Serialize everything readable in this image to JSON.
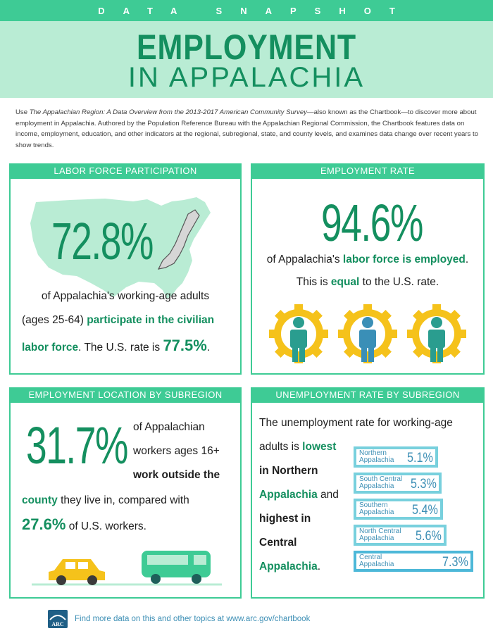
{
  "header": {
    "kicker": "DATA SNAPSHOT",
    "title_line1": "EMPLOYMENT",
    "title_line2": "IN APPALACHIA"
  },
  "intro": {
    "prefix": "Use ",
    "italic": "The Appalachian Region: A Data Overview from the 2013-2017 American Community Survey",
    "rest": "—also known as the Chartbook—to discover more about employment in Appalachia. Authored by the Population Reference Bureau with the Appalachian Regional Commission, the Chartbook features data on income, employment, education, and other indicators at the regional, subregional, state, and county levels, and examines data change over recent years to show trends."
  },
  "labor": {
    "heading": "LABOR FORCE PARTICIPATION",
    "value": "72.8%",
    "line1": "of Appalachia's working-age adults",
    "line2_prefix": "(ages 25-64) ",
    "line2_green": "participate in the civilian",
    "line3_green": "labor force",
    "line3_mid": ". The U.S. rate is ",
    "us_rate": "77.5%",
    "line3_end": "."
  },
  "employment": {
    "heading": "EMPLOYMENT RATE",
    "value": "94.6%",
    "line1_prefix": "of Appalachia's ",
    "line1_green": "labor force is employed",
    "line1_end": ".",
    "line2_prefix": "This is ",
    "line2_green": "equal",
    "line2_end": " to the U.S. rate."
  },
  "location": {
    "heading": "EMPLOYMENT LOCATION BY SUBREGION",
    "value": "31.7%",
    "line1": "of Appalachian",
    "line2": "workers ages 16+",
    "line3_green": "work outside the",
    "line4_green": "county",
    "line4_rest": " they live in, compared with",
    "us_value": "27.6%",
    "line5_rest": " of U.S. workers."
  },
  "unemployment": {
    "heading": "UNEMPLOYMENT RATE BY SUBREGION",
    "line1": "The unemployment rate for working-age",
    "line2_prefix": "adults is ",
    "line2_green": "lowest",
    "line3_green": "in Northern",
    "line4_green": "Appalachia",
    "line4_rest": " and",
    "line5_green": "highest in",
    "line6_green": "Central",
    "line7_green": "Appalachia",
    "line7_end": ".",
    "bars": [
      {
        "name_l1": "Northern",
        "name_l2": "Appalachia",
        "value": "5.1%",
        "rate": 5.1
      },
      {
        "name_l1": "South Central",
        "name_l2": "Appalachia",
        "value": "5.3%",
        "rate": 5.3
      },
      {
        "name_l1": "Southern",
        "name_l2": "Appalachia",
        "value": "5.4%",
        "rate": 5.4
      },
      {
        "name_l1": "North Central",
        "name_l2": "Appalachia",
        "value": "5.6%",
        "rate": 5.6
      },
      {
        "name_l1": "Central",
        "name_l2": "Appalachia",
        "value": "7.3%",
        "rate": 7.3
      }
    ]
  },
  "footer": {
    "logo_text": "ARC",
    "text": "Find more data on this and other topics at www.arc.gov/chartbook"
  },
  "colors": {
    "accent": "#3ecb95",
    "dark_green": "#148f5f",
    "light_green": "#b9ecd4",
    "bar_blue": "#78d0dd",
    "bar_text": "#3d8fb5",
    "gear_yellow": "#f5c21b",
    "person_teal": "#2a9d8f",
    "person_blue": "#3a8fb7"
  }
}
